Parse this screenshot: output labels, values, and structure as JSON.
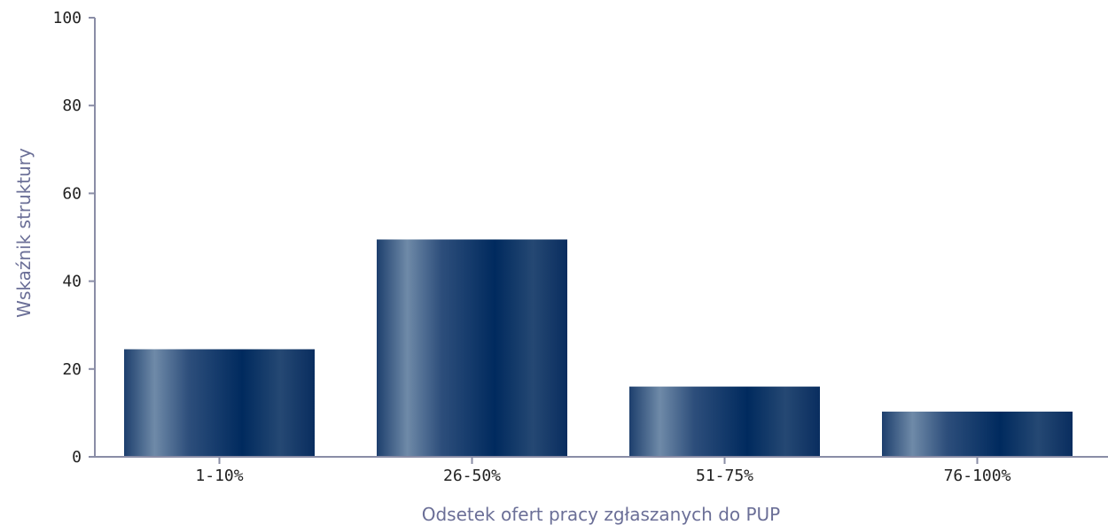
{
  "chart_data": {
    "type": "bar",
    "categories": [
      "1-10%",
      "26-50%",
      "51-75%",
      "76-100%"
    ],
    "values": [
      24.5,
      49.5,
      16,
      10.3
    ],
    "xlabel": "Odsetek ofert pracy zgłaszanych do PUP",
    "ylabel": "Wskaźnik struktury",
    "ylim": [
      0,
      100
    ],
    "yticks": [
      0,
      20,
      40,
      60,
      80,
      100
    ],
    "grid": false,
    "legend": "none",
    "colors": {
      "bar_dark": "#002a5e",
      "bar_light": "#6f8aa8",
      "axis": "#8a8da6",
      "axis_title": "#6b6f97",
      "tick_text": "#222222"
    }
  }
}
